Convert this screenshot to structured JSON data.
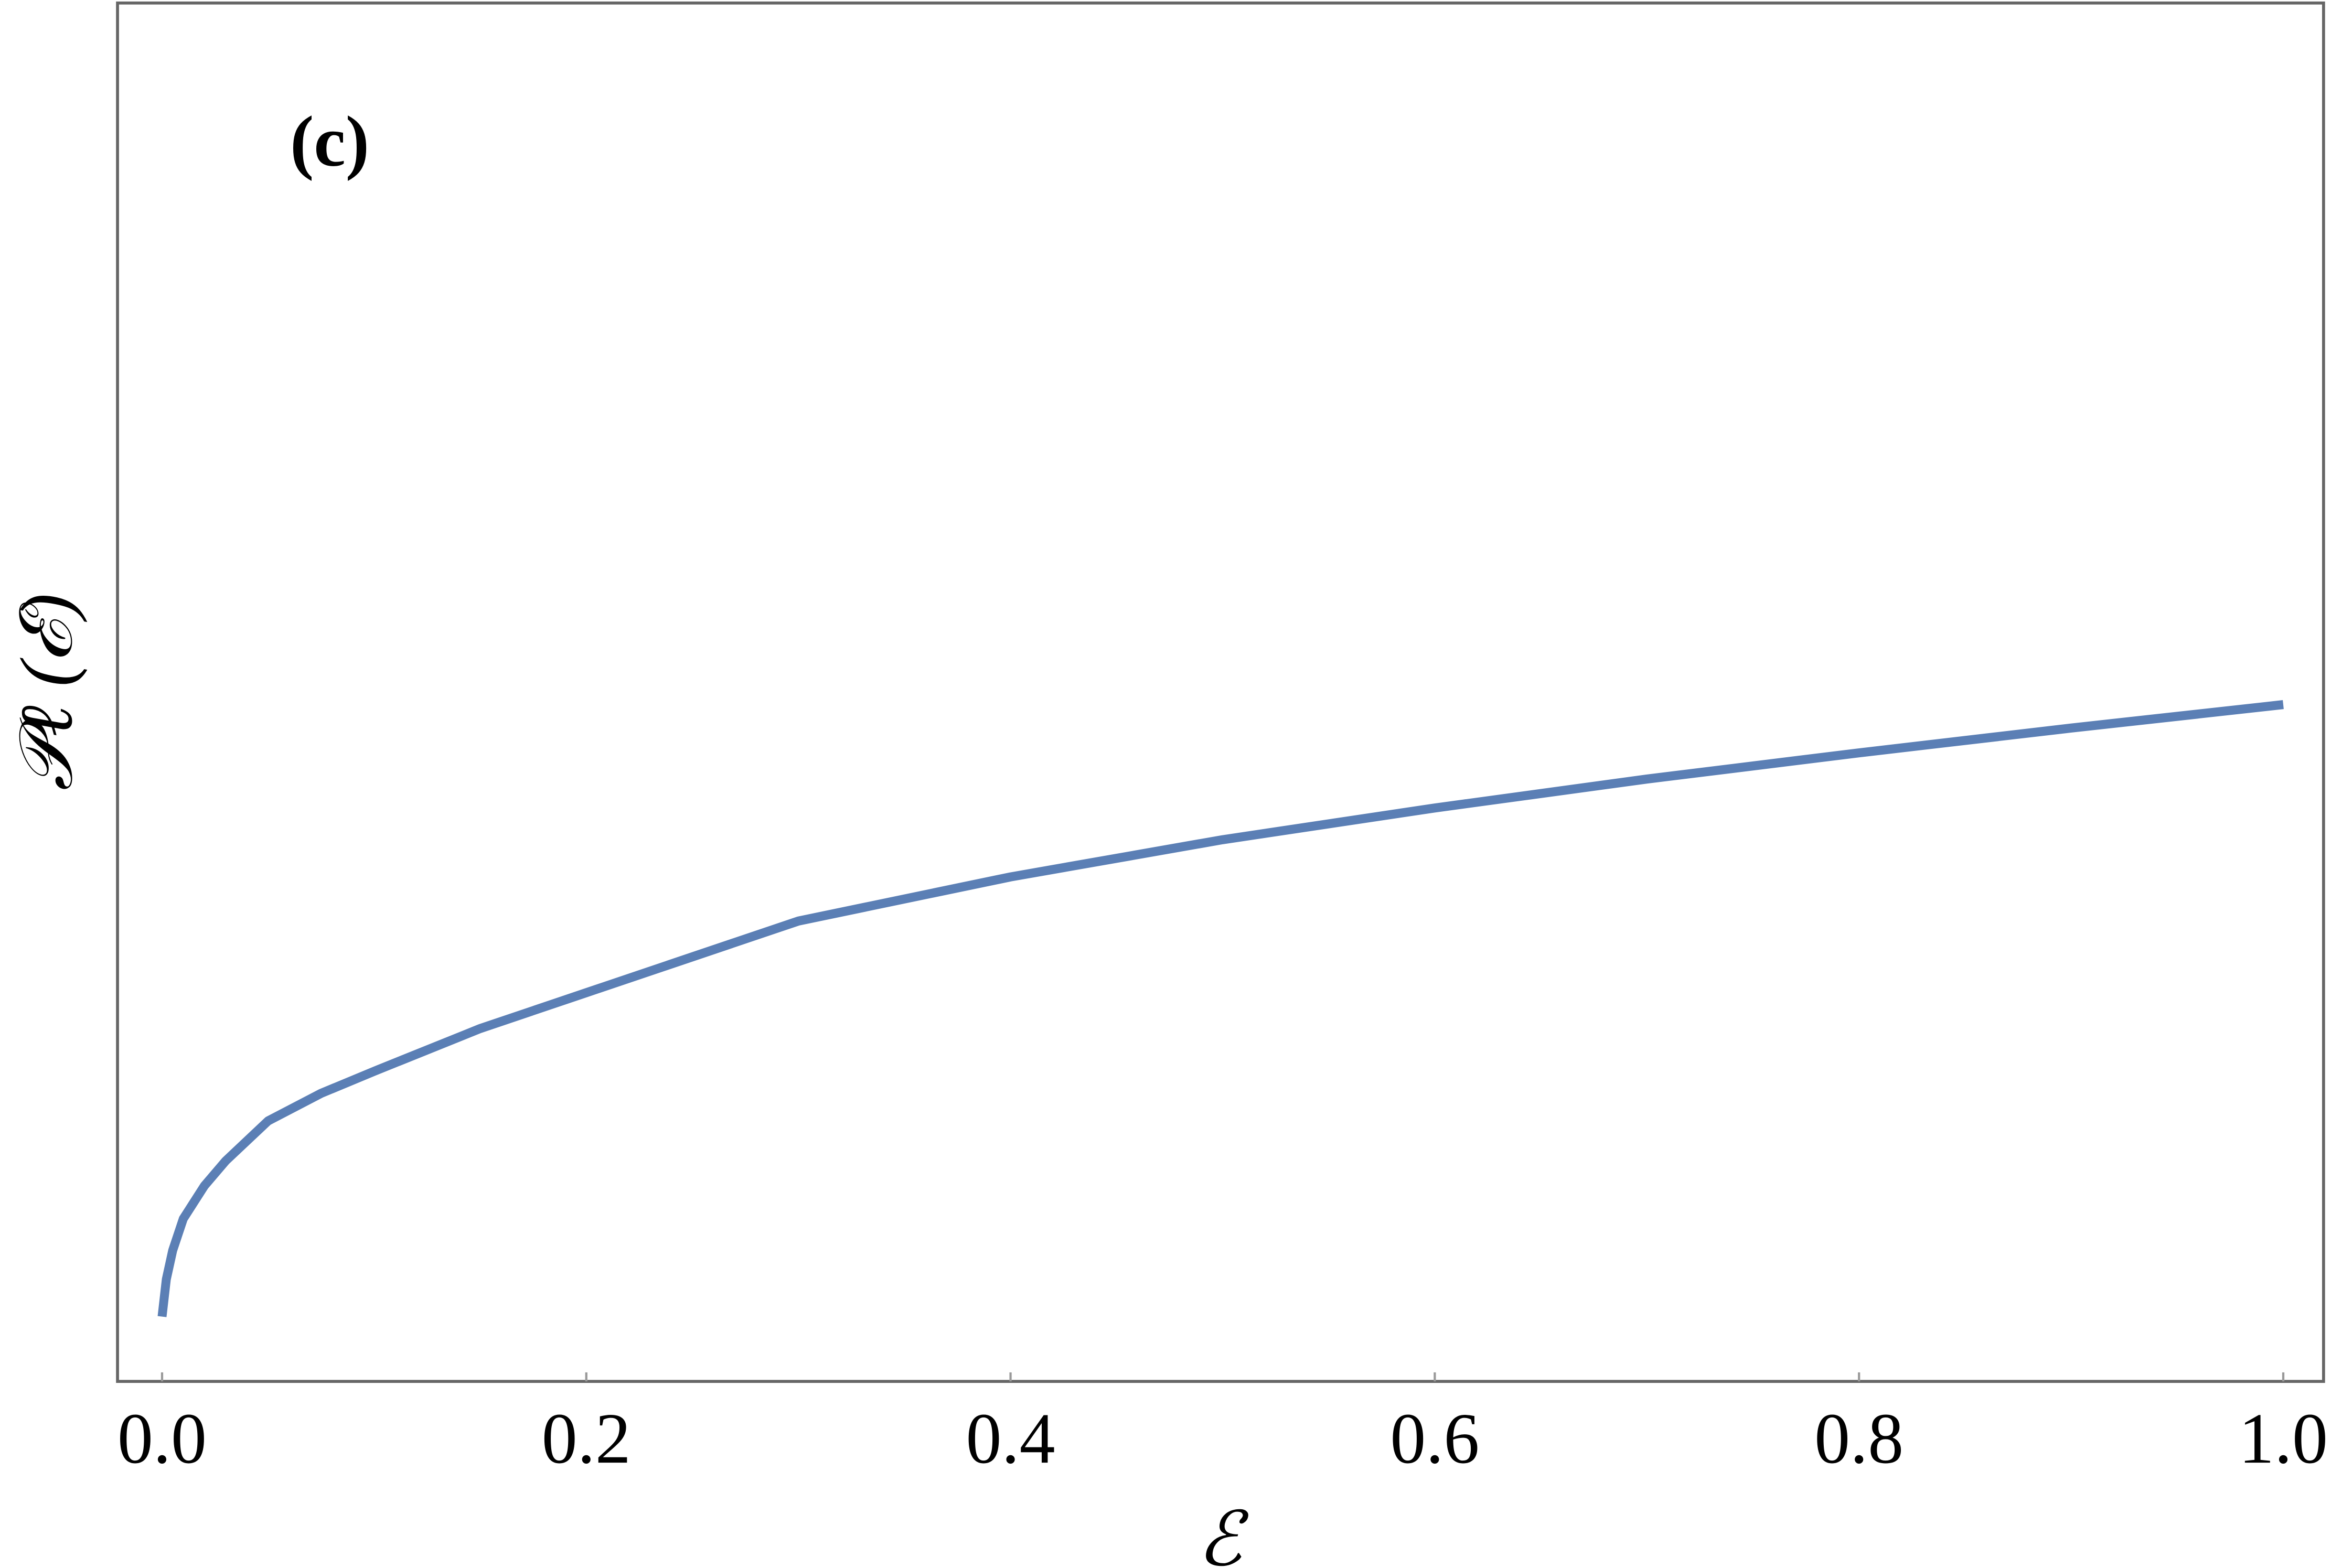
{
  "chart_data": {
    "type": "line",
    "annotation": "(c)",
    "x_label": "ℰ",
    "y_label": "𝒫ℓ (ℰ)",
    "x": [
      0,
      0.002,
      0.005,
      0.01,
      0.02,
      0.03,
      0.05,
      0.075,
      0.1,
      0.15,
      0.2,
      0.3,
      0.4,
      0.5,
      0.6,
      0.7,
      0.8,
      0.9,
      1.0
    ],
    "series": [
      {
        "color": "#5b7fb5",
        "values": [
          0.047,
          0.074,
          0.095,
          0.118,
          0.142,
          0.16,
          0.189,
          0.209,
          0.225,
          0.256,
          0.282,
          0.334,
          0.366,
          0.393,
          0.416,
          0.437,
          0.456,
          0.474,
          0.491
        ]
      }
    ],
    "xlim": [
      -0.021,
      1.019
    ],
    "ylim": [
      0,
      1
    ],
    "xticks": [
      {
        "value": 0,
        "label": "0.0"
      },
      0.2,
      0.4,
      0.6,
      0.8,
      {
        "value": 1,
        "label": "1.0"
      }
    ]
  }
}
